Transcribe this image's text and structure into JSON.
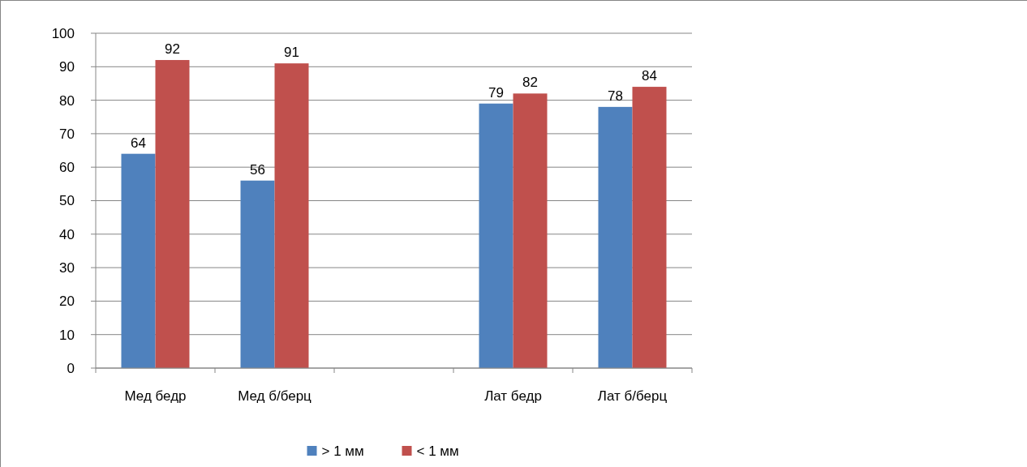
{
  "chart_data": {
    "type": "bar",
    "categories": [
      "Мед бедр",
      "Мед б/берц",
      null,
      "Лат бедр",
      "Лат б/берц"
    ],
    "series": [
      {
        "name": "> 1 мм",
        "color": "#4f81bd",
        "values": [
          64,
          56,
          null,
          79,
          78
        ]
      },
      {
        "name": "< 1 мм",
        "color": "#c0504d",
        "values": [
          92,
          91,
          null,
          82,
          84
        ]
      }
    ],
    "ylim": [
      0,
      100
    ],
    "yticks": [
      0,
      10,
      20,
      30,
      40,
      50,
      60,
      70,
      80,
      90,
      100
    ],
    "grid": "y",
    "legend": "bottom",
    "data_labels": true
  }
}
